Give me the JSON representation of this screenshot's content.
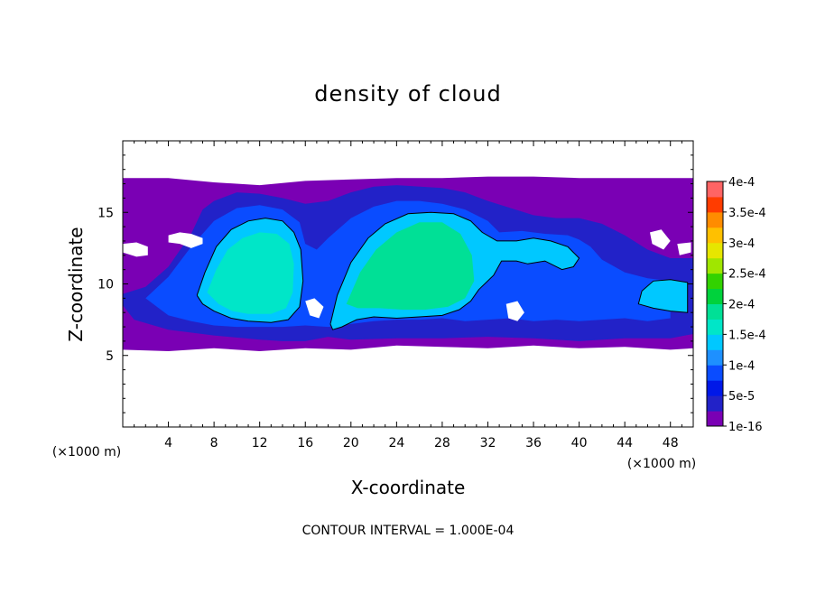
{
  "chart_data": {
    "type": "heatmap",
    "title": "density of cloud",
    "xlabel": "X-coordinate",
    "ylabel": "Z-coordinate",
    "x_unit_label": "(×1000 m)",
    "y_unit_label": "(×1000 m)",
    "xlim": [
      0,
      50
    ],
    "ylim": [
      0,
      20
    ],
    "x_ticks": [
      4,
      8,
      12,
      16,
      20,
      24,
      28,
      32,
      36,
      40,
      44,
      48
    ],
    "x_tick_labels": [
      "4",
      "8",
      "12",
      "16",
      "20",
      "24",
      "28",
      "32",
      "36",
      "40",
      "44",
      "48"
    ],
    "y_ticks": [
      5,
      10,
      15
    ],
    "y_tick_labels": [
      "5",
      "10",
      "15"
    ],
    "footer": "CONTOUR INTERVAL = 1.000E-04",
    "colorbar": {
      "levels": [
        1e-16,
        2.5e-05,
        5e-05,
        7.5e-05,
        0.0001,
        0.000125,
        0.00015,
        0.000175,
        0.0002,
        0.000225,
        0.00025,
        0.000275,
        0.0003,
        0.000325,
        0.00035,
        0.000375,
        0.0004
      ],
      "colors": [
        "#7a00b4",
        "#2222c8",
        "#0018e8",
        "#0a4cff",
        "#1e90ff",
        "#00c8ff",
        "#00e6c8",
        "#00e096",
        "#00d23c",
        "#32d200",
        "#a0e600",
        "#e6e600",
        "#ffc000",
        "#ff8c00",
        "#ff3c00",
        "#ff6464"
      ],
      "tick_labels": [
        "1e-16",
        "5e-5",
        "1e-4",
        "1.5e-4",
        "2e-4",
        "2.5e-4",
        "3e-4",
        "3.5e-4",
        "4e-4"
      ],
      "tick_values": [
        1e-16,
        5e-05,
        0.0001,
        0.00015,
        0.0002,
        0.00025,
        0.0003,
        0.00035,
        0.0004
      ]
    },
    "field_regions": [
      {
        "kind": "base",
        "level": 0,
        "x": [
          0,
          4,
          8,
          12,
          16,
          20,
          24,
          28,
          32,
          36,
          40,
          44,
          48,
          50,
          50,
          48,
          44,
          40,
          36,
          32,
          28,
          24,
          20,
          16,
          12,
          8,
          4,
          0
        ],
        "z": [
          17.4,
          17.4,
          17.1,
          16.9,
          17.2,
          17.3,
          17.4,
          17.4,
          17.5,
          17.5,
          17.4,
          17.4,
          17.4,
          17.4,
          5.5,
          5.4,
          5.6,
          5.5,
          5.7,
          5.5,
          5.6,
          5.7,
          5.4,
          5.5,
          5.3,
          5.5,
          5.3,
          5.4
        ]
      },
      {
        "kind": "band",
        "level": 1,
        "x": [
          0,
          2,
          4,
          6,
          7,
          8,
          10,
          12,
          14,
          16,
          18,
          20,
          22,
          24,
          28,
          30,
          32,
          34,
          36,
          38,
          40,
          42,
          44,
          46,
          48,
          50,
          50,
          48,
          44,
          40,
          36,
          32,
          28,
          24,
          20,
          18,
          16,
          14,
          12,
          8,
          4,
          1,
          0
        ],
        "z": [
          9.3,
          9.8,
          11.2,
          13.5,
          15.2,
          15.8,
          16.4,
          16.3,
          16.0,
          15.6,
          15.8,
          16.4,
          16.8,
          16.9,
          16.7,
          16.4,
          15.8,
          15.3,
          14.8,
          14.6,
          14.6,
          14.2,
          13.4,
          12.4,
          11.8,
          11.8,
          6.5,
          6.2,
          6.2,
          6.0,
          6.2,
          6.3,
          6.2,
          6.2,
          6.1,
          6.3,
          6.0,
          6.0,
          6.1,
          6.4,
          6.8,
          7.5,
          8.5
        ]
      },
      {
        "kind": "band",
        "level": 3,
        "x": [
          2,
          4,
          6,
          8,
          10,
          12,
          14,
          15.5,
          16,
          17,
          18,
          20,
          22,
          24,
          26,
          28,
          30,
          32,
          33,
          35,
          37,
          39,
          40,
          41,
          42,
          44,
          46,
          48,
          48,
          46,
          44,
          42,
          40,
          38,
          36,
          34,
          32,
          30,
          28,
          26,
          24,
          22,
          20,
          18,
          16,
          14,
          12,
          10,
          8,
          6,
          4,
          3
        ],
        "z": [
          9.0,
          10.5,
          12.6,
          14.4,
          15.3,
          15.5,
          15.2,
          14.3,
          12.8,
          12.4,
          13.2,
          14.6,
          15.4,
          15.8,
          15.8,
          15.6,
          15.2,
          14.4,
          13.6,
          13.7,
          13.5,
          13.4,
          13.1,
          12.6,
          11.7,
          10.8,
          10.4,
          10.2,
          7.6,
          7.4,
          7.6,
          7.5,
          7.4,
          7.5,
          7.4,
          7.6,
          7.5,
          7.4,
          7.6,
          7.5,
          7.5,
          7.4,
          7.2,
          7.0,
          7.1,
          7.0,
          7.0,
          7.0,
          7.1,
          7.4,
          7.8,
          8.4
        ]
      },
      {
        "kind": "band",
        "level": 5,
        "x": [
          6.5,
          7.2,
          8.2,
          9.5,
          11,
          12.5,
          14,
          15,
          15.6,
          15.8,
          15.5,
          14.5,
          13,
          11,
          9.5,
          8,
          7
        ],
        "z": [
          9.2,
          10.8,
          12.6,
          13.8,
          14.4,
          14.6,
          14.4,
          13.6,
          12.4,
          10.2,
          8.4,
          7.5,
          7.3,
          7.4,
          7.6,
          8.1,
          8.6
        ]
      },
      {
        "kind": "band",
        "level": 6,
        "x": [
          7.4,
          8.2,
          9.2,
          10.5,
          12,
          13.5,
          14.6,
          15.0,
          14.9,
          14.3,
          13,
          11,
          9.6,
          8.4
        ],
        "z": [
          9.4,
          11.0,
          12.4,
          13.2,
          13.6,
          13.5,
          12.8,
          11.4,
          9.4,
          8.3,
          7.9,
          7.9,
          8.1,
          8.6
        ]
      },
      {
        "kind": "band",
        "level": 5,
        "x": [
          18.2,
          18.8,
          20,
          21.5,
          23,
          25,
          27,
          29,
          30.5,
          31.5,
          32.8,
          34.5,
          36,
          37.5,
          39,
          40,
          39.5,
          38.5,
          37,
          35.5,
          34.5,
          33.2,
          32.5,
          31.2,
          30.5,
          29.5,
          28,
          26,
          24,
          22,
          20.5,
          19.2,
          18.4
        ],
        "z": [
          7.2,
          9.2,
          11.5,
          13.2,
          14.2,
          14.9,
          15.0,
          14.9,
          14.4,
          13.6,
          13.0,
          13.0,
          13.2,
          13.0,
          12.6,
          11.8,
          11.2,
          11.0,
          11.6,
          11.4,
          11.6,
          11.6,
          10.6,
          9.6,
          8.8,
          8.2,
          7.8,
          7.7,
          7.6,
          7.7,
          7.5,
          7.0,
          6.8
        ]
      },
      {
        "kind": "band",
        "level": 7,
        "x": [
          19.6,
          20.8,
          22.2,
          24,
          26,
          28,
          29.6,
          30.6,
          30.8,
          30.0,
          28.5,
          26.5,
          24.5,
          22.5,
          20.6
        ],
        "z": [
          8.6,
          10.8,
          12.4,
          13.6,
          14.3,
          14.3,
          13.5,
          12.0,
          10.2,
          9.0,
          8.4,
          8.2,
          8.2,
          8.3,
          8.3
        ]
      },
      {
        "kind": "band",
        "level": 5,
        "x": [
          45.5,
          46.5,
          48,
          49.5,
          49.5,
          48,
          46.5,
          45.2
        ],
        "z": [
          9.5,
          10.2,
          10.3,
          10.1,
          8.0,
          8.1,
          8.3,
          8.6
        ]
      }
    ],
    "contour_lines": [
      {
        "level": 0.0001,
        "x": [
          6.5,
          7.2,
          8.2,
          9.5,
          11,
          12.5,
          14,
          15,
          15.6,
          15.8,
          15.5,
          14.5,
          13,
          11,
          9.5,
          8,
          7,
          6.5
        ],
        "z": [
          9.2,
          10.8,
          12.6,
          13.8,
          14.4,
          14.6,
          14.4,
          13.6,
          12.4,
          10.2,
          8.4,
          7.5,
          7.3,
          7.4,
          7.6,
          8.1,
          8.6,
          9.2
        ]
      },
      {
        "level": 0.0001,
        "x": [
          18.2,
          18.8,
          20,
          21.5,
          23,
          25,
          27,
          29,
          30.5,
          31.5,
          32.8,
          34.5,
          36,
          37.5,
          39,
          40,
          39.5,
          38.5,
          37,
          35.5,
          34.5,
          33.2,
          32.5,
          31.2,
          30.5,
          29.5,
          28,
          26,
          24,
          22,
          20.5,
          19.2,
          18.4,
          18.2
        ],
        "z": [
          7.2,
          9.2,
          11.5,
          13.2,
          14.2,
          14.9,
          15.0,
          14.9,
          14.4,
          13.6,
          13.0,
          13.0,
          13.2,
          13.0,
          12.6,
          11.8,
          11.2,
          11.0,
          11.6,
          11.4,
          11.6,
          11.6,
          10.6,
          9.6,
          8.8,
          8.2,
          7.8,
          7.7,
          7.6,
          7.7,
          7.5,
          7.0,
          6.8,
          7.2
        ]
      },
      {
        "level": 0.0001,
        "x": [
          45.5,
          46.5,
          48,
          49.5,
          49.5,
          48,
          46.5,
          45.2,
          45.5
        ],
        "z": [
          9.5,
          10.2,
          10.3,
          10.1,
          8.0,
          8.1,
          8.3,
          8.6,
          9.5
        ]
      }
    ],
    "clear_patches": [
      {
        "x": [
          4,
          5,
          6,
          7,
          7,
          6,
          5,
          4
        ],
        "z": [
          13.4,
          13.6,
          13.5,
          13.2,
          12.8,
          12.5,
          12.8,
          12.9
        ]
      },
      {
        "x": [
          0,
          1.2,
          2.2,
          2.2,
          1.2,
          0
        ],
        "z": [
          12.8,
          12.9,
          12.6,
          12.0,
          11.9,
          12.2
        ]
      },
      {
        "x": [
          16,
          16.8,
          17.6,
          17.2,
          16.4
        ],
        "z": [
          8.8,
          9.0,
          8.4,
          7.6,
          7.8
        ]
      },
      {
        "x": [
          33.6,
          34.6,
          35.2,
          34.6,
          33.8
        ],
        "z": [
          8.6,
          8.8,
          8.0,
          7.4,
          7.6
        ]
      },
      {
        "x": [
          46.2,
          47.2,
          48,
          47.4,
          46.4
        ],
        "z": [
          13.6,
          13.8,
          13.0,
          12.4,
          12.8
        ]
      },
      {
        "x": [
          48.6,
          49.8,
          49.8,
          48.8
        ],
        "z": [
          12.8,
          12.9,
          12.2,
          12.0
        ]
      }
    ],
    "grid": false,
    "legend_placement": "right"
  }
}
